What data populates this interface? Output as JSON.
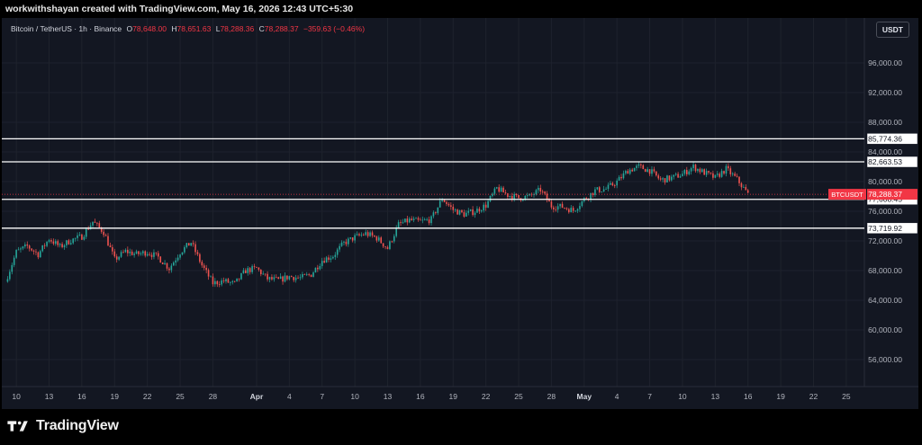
{
  "header": {
    "attribution": "workwithshayan created with TradingView.com, May 16, 2026 12:43 UTC+5:30"
  },
  "legend": {
    "symbol": "Bitcoin / TetherUS · 1h · Binance",
    "open_key": "O",
    "open": "78,648.00",
    "high_key": "H",
    "high": "78,651.63",
    "low_key": "L",
    "low": "78,288.36",
    "close_key": "C",
    "close": "78,288.37",
    "change": "−359.63 (−0.46%)"
  },
  "currency_button": "USDT",
  "footer": {
    "brand": "TradingView"
  },
  "colors": {
    "background": "#131722",
    "up": "#26a69a",
    "down": "#ef5350",
    "level_line": "#ffffff",
    "price_tag": "#f23645",
    "axis_text": "#b2b5be"
  },
  "chart_data": {
    "type": "candlestick",
    "title": "",
    "ylim": [
      52000,
      100000
    ],
    "y_ticks": [
      {
        "value": 96000,
        "label": "96,000.00"
      },
      {
        "value": 92000,
        "label": "92,000.00"
      },
      {
        "value": 88000,
        "label": "88,000.00"
      },
      {
        "value": 84000,
        "label": "84,000.00"
      },
      {
        "value": 80000,
        "label": "80,000.00"
      },
      {
        "value": 76000,
        "label": "76,000.00"
      },
      {
        "value": 72000,
        "label": "72,000.00"
      },
      {
        "value": 68000,
        "label": "68,000.00"
      },
      {
        "value": 64000,
        "label": "64,000.00"
      },
      {
        "value": 60000,
        "label": "60,000.00"
      },
      {
        "value": 56000,
        "label": "56,000.00"
      }
    ],
    "x_ticks": [
      {
        "date": "2026-03-10",
        "label": "10"
      },
      {
        "date": "2026-03-13",
        "label": "13"
      },
      {
        "date": "2026-03-16",
        "label": "16"
      },
      {
        "date": "2026-03-19",
        "label": "19"
      },
      {
        "date": "2026-03-22",
        "label": "22"
      },
      {
        "date": "2026-03-25",
        "label": "25"
      },
      {
        "date": "2026-03-28",
        "label": "28"
      },
      {
        "date": "2026-04-01",
        "label": "Apr"
      },
      {
        "date": "2026-04-04",
        "label": "4"
      },
      {
        "date": "2026-04-07",
        "label": "7"
      },
      {
        "date": "2026-04-10",
        "label": "10"
      },
      {
        "date": "2026-04-13",
        "label": "13"
      },
      {
        "date": "2026-04-16",
        "label": "16"
      },
      {
        "date": "2026-04-19",
        "label": "19"
      },
      {
        "date": "2026-04-22",
        "label": "22"
      },
      {
        "date": "2026-04-25",
        "label": "25"
      },
      {
        "date": "2026-04-28",
        "label": "28"
      },
      {
        "date": "2026-05-01",
        "label": "May"
      },
      {
        "date": "2026-05-04",
        "label": "4"
      },
      {
        "date": "2026-05-07",
        "label": "7"
      },
      {
        "date": "2026-05-10",
        "label": "10"
      },
      {
        "date": "2026-05-13",
        "label": "13"
      },
      {
        "date": "2026-05-16",
        "label": "16"
      },
      {
        "date": "2026-05-19",
        "label": "19"
      },
      {
        "date": "2026-05-22",
        "label": "22"
      },
      {
        "date": "2026-05-25",
        "label": "25"
      }
    ],
    "x_range": [
      "2026-03-09",
      "2026-05-26"
    ],
    "series": [
      {
        "date": "2026-03-09",
        "close": 66500
      },
      {
        "date": "2026-03-10",
        "close": 70500
      },
      {
        "date": "2026-03-11",
        "close": 71300
      },
      {
        "date": "2026-03-12",
        "close": 70200
      },
      {
        "date": "2026-03-13",
        "close": 72300
      },
      {
        "date": "2026-03-14",
        "close": 71200
      },
      {
        "date": "2026-03-15",
        "close": 72100
      },
      {
        "date": "2026-03-16",
        "close": 72600
      },
      {
        "date": "2026-03-17",
        "close": 74600
      },
      {
        "date": "2026-03-18",
        "close": 73200
      },
      {
        "date": "2026-03-19",
        "close": 69500
      },
      {
        "date": "2026-03-20",
        "close": 70600
      },
      {
        "date": "2026-03-21",
        "close": 70200
      },
      {
        "date": "2026-03-22",
        "close": 70500
      },
      {
        "date": "2026-03-23",
        "close": 69800
      },
      {
        "date": "2026-03-24",
        "close": 68300
      },
      {
        "date": "2026-03-25",
        "close": 70500
      },
      {
        "date": "2026-03-26",
        "close": 71800
      },
      {
        "date": "2026-03-27",
        "close": 68700
      },
      {
        "date": "2026-03-28",
        "close": 66300
      },
      {
        "date": "2026-03-29",
        "close": 66600
      },
      {
        "date": "2026-03-30",
        "close": 66200
      },
      {
        "date": "2026-03-31",
        "close": 68000
      },
      {
        "date": "2026-04-01",
        "close": 68300
      },
      {
        "date": "2026-04-02",
        "close": 66900
      },
      {
        "date": "2026-04-03",
        "close": 66700
      },
      {
        "date": "2026-04-04",
        "close": 67200
      },
      {
        "date": "2026-04-05",
        "close": 67000
      },
      {
        "date": "2026-04-06",
        "close": 67500
      },
      {
        "date": "2026-04-07",
        "close": 69400
      },
      {
        "date": "2026-04-08",
        "close": 70000
      },
      {
        "date": "2026-04-09",
        "close": 71700
      },
      {
        "date": "2026-04-10",
        "close": 72500
      },
      {
        "date": "2026-04-11",
        "close": 73000
      },
      {
        "date": "2026-04-12",
        "close": 72400
      },
      {
        "date": "2026-04-13",
        "close": 71000
      },
      {
        "date": "2026-04-14",
        "close": 74200
      },
      {
        "date": "2026-04-15",
        "close": 74800
      },
      {
        "date": "2026-04-16",
        "close": 74600
      },
      {
        "date": "2026-04-17",
        "close": 74900
      },
      {
        "date": "2026-04-18",
        "close": 77700
      },
      {
        "date": "2026-04-19",
        "close": 76200
      },
      {
        "date": "2026-04-20",
        "close": 75600
      },
      {
        "date": "2026-04-21",
        "close": 76000
      },
      {
        "date": "2026-04-22",
        "close": 76800
      },
      {
        "date": "2026-04-23",
        "close": 79100
      },
      {
        "date": "2026-04-24",
        "close": 78200
      },
      {
        "date": "2026-04-25",
        "close": 77800
      },
      {
        "date": "2026-04-26",
        "close": 78000
      },
      {
        "date": "2026-04-27",
        "close": 78900
      },
      {
        "date": "2026-04-28",
        "close": 76700
      },
      {
        "date": "2026-04-29",
        "close": 76600
      },
      {
        "date": "2026-04-30",
        "close": 76100
      },
      {
        "date": "2026-05-01",
        "close": 77600
      },
      {
        "date": "2026-05-02",
        "close": 78800
      },
      {
        "date": "2026-05-03",
        "close": 79000
      },
      {
        "date": "2026-05-04",
        "close": 80000
      },
      {
        "date": "2026-05-05",
        "close": 81500
      },
      {
        "date": "2026-05-06",
        "close": 82000
      },
      {
        "date": "2026-05-07",
        "close": 81500
      },
      {
        "date": "2026-05-08",
        "close": 80200
      },
      {
        "date": "2026-05-09",
        "close": 80500
      },
      {
        "date": "2026-05-10",
        "close": 81000
      },
      {
        "date": "2026-05-11",
        "close": 82000
      },
      {
        "date": "2026-05-12",
        "close": 81200
      },
      {
        "date": "2026-05-13",
        "close": 80500
      },
      {
        "date": "2026-05-14",
        "close": 81700
      },
      {
        "date": "2026-05-15",
        "close": 80300
      },
      {
        "date": "2026-05-16",
        "close": 78288.37
      }
    ],
    "horizontal_levels": [
      {
        "value": 85774.36,
        "label": "85,774.36"
      },
      {
        "value": 82663.53,
        "label": "82,663.53"
      },
      {
        "value": 77608.45,
        "label": "77,608.45"
      },
      {
        "value": 73719.92,
        "label": "73,719.92"
      }
    ],
    "last_price": {
      "value": 78288.37,
      "label": "78,288.37",
      "symbol": "BTCUSDT"
    },
    "grid": true
  }
}
